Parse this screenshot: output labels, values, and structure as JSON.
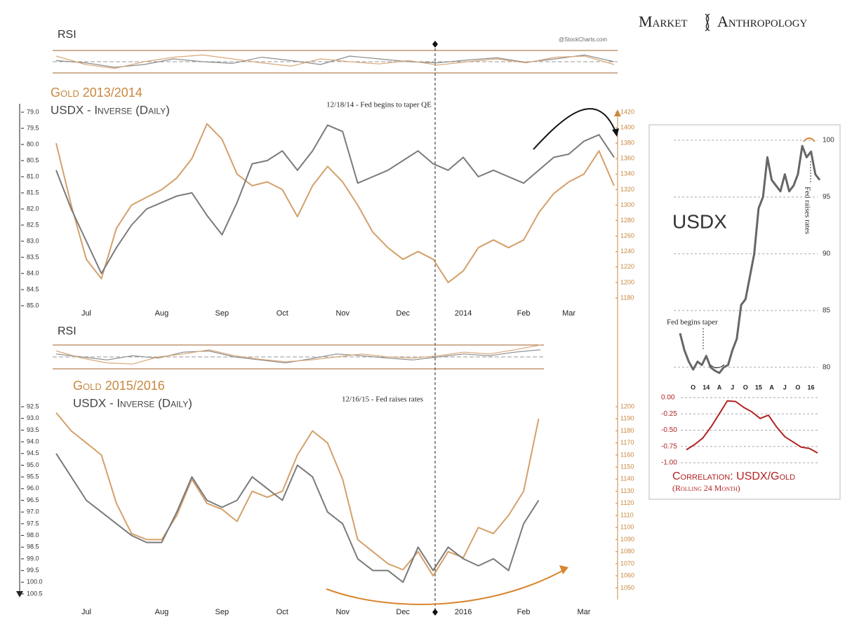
{
  "header": {
    "brand_left": "Market",
    "brand_right": "Anthropology"
  },
  "chart_data": [
    {
      "type": "line",
      "title": "RSI",
      "source": "@StockCharts.com",
      "ylim": [
        30,
        70
      ],
      "series": [
        {
          "color": "#8c8c8c",
          "values": [
            52,
            48,
            40,
            45,
            55,
            50,
            47,
            58,
            52,
            45,
            60,
            55,
            50,
            48,
            53,
            57,
            49,
            55,
            62,
            50
          ]
        },
        {
          "color": "#d9a877",
          "values": [
            60,
            45,
            38,
            50,
            58,
            62,
            55,
            48,
            42,
            55,
            50,
            46,
            52,
            44,
            50,
            55,
            48,
            58,
            60,
            45
          ]
        }
      ]
    },
    {
      "type": "line",
      "annotation": "12/18/14 - Fed begins to taper QE",
      "categories": [
        null,
        null,
        "Jul",
        null,
        null,
        null,
        null,
        "Aug",
        null,
        null,
        null,
        "Sep",
        null,
        null,
        null,
        "Oct",
        null,
        null,
        null,
        "Nov",
        null,
        null,
        null,
        "Dec",
        null,
        null,
        null,
        "2014",
        null,
        null,
        null,
        "Feb",
        null,
        null,
        "Mar",
        null,
        null,
        null
      ],
      "series": [
        {
          "name": "Gold 2013/2014",
          "color": "#d4a06a",
          "axis": "y2",
          "values": [
            1380,
            1300,
            1230,
            1205,
            1270,
            1300,
            1310,
            1320,
            1335,
            1360,
            1405,
            1385,
            1340,
            1325,
            1330,
            1320,
            1285,
            1325,
            1350,
            1330,
            1300,
            1265,
            1245,
            1230,
            1240,
            1230,
            1200,
            1215,
            1245,
            1255,
            1245,
            1255,
            1290,
            1315,
            1330,
            1340,
            1370,
            1325
          ]
        },
        {
          "name": "USDX - Inverse (Daily)",
          "color": "#7a7a7a",
          "values": [
            80.8,
            82.0,
            83.0,
            84.0,
            83.2,
            82.5,
            82.0,
            81.8,
            81.6,
            81.5,
            82.2,
            82.8,
            81.8,
            80.6,
            80.5,
            80.2,
            80.8,
            80.2,
            79.4,
            79.6,
            81.2,
            81.0,
            80.8,
            80.5,
            80.2,
            80.6,
            80.8,
            80.4,
            81.0,
            80.8,
            81.0,
            81.2,
            80.8,
            80.4,
            80.3,
            79.9,
            79.7,
            80.4
          ]
        }
      ],
      "ylim": [
        85,
        79
      ],
      "yticks": [
        {
          "value": 79,
          "label": "79.0"
        },
        79.5,
        {
          "value": 80,
          "label": "80.0"
        },
        80.5,
        {
          "value": 81,
          "label": "81.0"
        },
        81.5,
        {
          "value": 82,
          "label": "82.0"
        },
        82.5,
        {
          "value": 83,
          "label": "83.0"
        },
        83.5,
        {
          "value": 84,
          "label": "84.0"
        },
        84.5,
        {
          "value": 85,
          "label": "85.0"
        }
      ],
      "y2lim": [
        1170,
        1420
      ],
      "y2ticks": [
        1180,
        1200,
        1220,
        1240,
        1260,
        1280,
        1300,
        1320,
        1340,
        1360,
        1380,
        1400,
        1420
      ]
    },
    {
      "type": "line",
      "title": "RSI",
      "ylim": [
        30,
        70
      ],
      "series": [
        {
          "color": "#8c8c8c",
          "values": [
            55,
            50,
            45,
            52,
            48,
            58,
            60,
            50,
            45,
            40,
            47,
            55,
            52,
            48,
            45,
            50,
            55,
            52,
            58,
            62
          ]
        },
        {
          "color": "#d9a877",
          "values": [
            60,
            48,
            40,
            38,
            50,
            55,
            62,
            52,
            46,
            42,
            45,
            50,
            55,
            50,
            48,
            52,
            58,
            55,
            62,
            70
          ]
        }
      ]
    },
    {
      "type": "line",
      "annotation": "12/16/15 - Fed raises rates",
      "categories": [
        null,
        null,
        "Jul",
        null,
        null,
        null,
        null,
        "Aug",
        null,
        null,
        null,
        "Sep",
        null,
        null,
        null,
        "Oct",
        null,
        null,
        null,
        "Nov",
        null,
        null,
        null,
        "Dec",
        null,
        null,
        null,
        "2016",
        null,
        null,
        null,
        "Feb",
        null,
        null,
        null,
        "Mar"
      ],
      "series": [
        {
          "name": "Gold 2015/2016",
          "color": "#d4a06a",
          "axis": "y2",
          "values": [
            1195,
            1180,
            1170,
            1160,
            1120,
            1095,
            1090,
            1090,
            1110,
            1140,
            1120,
            1115,
            1105,
            1130,
            1125,
            1130,
            1160,
            1180,
            1170,
            1140,
            1090,
            1080,
            1070,
            1065,
            1080,
            1060,
            1080,
            1075,
            1100,
            1095,
            1110,
            1130,
            1190,
            null,
            null,
            null
          ]
        },
        {
          "name": "USDX - Inverse (Daily)",
          "color": "#7a7a7a",
          "values": [
            94.5,
            95.5,
            96.5,
            97.0,
            97.5,
            98.0,
            98.3,
            98.3,
            97.0,
            95.5,
            96.5,
            96.8,
            96.5,
            95.5,
            96.0,
            96.5,
            95.0,
            95.5,
            97.0,
            97.5,
            99.0,
            99.5,
            99.5,
            100.0,
            98.5,
            99.5,
            98.5,
            99.0,
            99.3,
            99.0,
            99.5,
            97.5,
            96.5,
            null,
            null,
            null
          ]
        }
      ],
      "ylim": [
        100.5,
        92.5
      ],
      "yticks": [
        92.5,
        {
          "value": 93,
          "label": "93.0"
        },
        93.5,
        {
          "value": 94,
          "label": "94.0"
        },
        94.5,
        {
          "value": 95,
          "label": "95.0"
        },
        95.5,
        {
          "value": 96,
          "label": "96.0"
        },
        96.5,
        {
          "value": 97,
          "label": "97.0"
        },
        97.5,
        {
          "value": 98,
          "label": "98.0"
        },
        98.5,
        {
          "value": 99,
          "label": "99.0"
        },
        99.5,
        {
          "value": 100,
          "label": "100.0"
        },
        100.5
      ],
      "y2lim": [
        1045,
        1200
      ],
      "y2ticks": [
        1050,
        1060,
        1070,
        1080,
        1090,
        1100,
        1110,
        1120,
        1130,
        1140,
        1150,
        1160,
        1170,
        1180,
        1190,
        1200
      ]
    },
    {
      "type": "line",
      "title": "USDX",
      "annotations": [
        "Fed begins taper",
        "Fed raises rates"
      ],
      "categories": [
        null,
        null,
        null,
        "O",
        null,
        null,
        "14",
        null,
        null,
        "A",
        null,
        null,
        "J",
        null,
        null,
        "O",
        null,
        null,
        "15",
        null,
        null,
        "A",
        null,
        null,
        "J",
        null,
        null,
        "O",
        null,
        null,
        "16",
        null,
        null
      ],
      "color": "#666666",
      "values": [
        83,
        81.5,
        80.5,
        79.8,
        80.5,
        80.2,
        81.0,
        80.0,
        79.7,
        79.5,
        80.0,
        80.2,
        81.5,
        82.5,
        85.5,
        86.0,
        88.0,
        90.0,
        94.0,
        95.0,
        98.5,
        96.5,
        96.0,
        95.5,
        97.0,
        95.5,
        96.0,
        97.0,
        99.5,
        98.5,
        99.0,
        97.0,
        96.5
      ],
      "ylim": [
        79,
        100
      ],
      "yticks": [
        80,
        85,
        90,
        95,
        100
      ],
      "grid": true
    },
    {
      "type": "line",
      "title": "Correlation: USDX/Gold",
      "subtitle": "(Rolling 24 Month)",
      "color": "#b22222",
      "values": [
        -0.8,
        -0.72,
        -0.62,
        -0.45,
        -0.25,
        -0.05,
        -0.06,
        -0.15,
        -0.22,
        -0.32,
        -0.27,
        -0.45,
        -0.6,
        -0.68,
        -0.76,
        -0.78,
        -0.85
      ],
      "ylim": [
        -1,
        0
      ],
      "yticks": [
        {
          "value": 0,
          "label": "0.00"
        },
        {
          "value": -0.25,
          "label": "-0.25"
        },
        {
          "value": -0.5,
          "label": "-0.50"
        },
        {
          "value": -0.75,
          "label": "-0.75"
        },
        {
          "value": -1,
          "label": "-1.00"
        }
      ],
      "grid": true
    }
  ]
}
